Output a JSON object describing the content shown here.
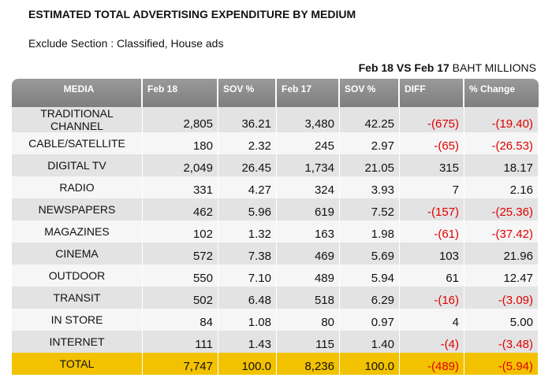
{
  "title": "ESTIMATED TOTAL ADVERTISING EXPENDITURE BY MEDIUM",
  "subtitle": "Exclude Section : Classified, House ads",
  "period": "Feb 18 VS Feb 17",
  "unit": "BAHT MILLIONS",
  "chart_data": {
    "type": "table",
    "columns": [
      "MEDIA",
      "Feb 18",
      "SOV %",
      "Feb 17",
      "SOV %",
      "DIFF",
      "% Change"
    ],
    "rows": [
      {
        "media": "TRADITIONAL CHANNEL",
        "feb18": "2,805",
        "sov18": "36.21",
        "feb17": "3,480",
        "sov17": "42.25",
        "diff": "-(675)",
        "change": "-(19.40)"
      },
      {
        "media": "CABLE/SATELLITE",
        "feb18": "180",
        "sov18": "2.32",
        "feb17": "245",
        "sov17": "2.97",
        "diff": "-(65)",
        "change": "-(26.53)"
      },
      {
        "media": "DIGITAL TV",
        "feb18": "2,049",
        "sov18": "26.45",
        "feb17": "1,734",
        "sov17": "21.05",
        "diff": "315",
        "change": "18.17"
      },
      {
        "media": "RADIO",
        "feb18": "331",
        "sov18": "4.27",
        "feb17": "324",
        "sov17": "3.93",
        "diff": "7",
        "change": "2.16"
      },
      {
        "media": "NEWSPAPERS",
        "feb18": "462",
        "sov18": "5.96",
        "feb17": "619",
        "sov17": "7.52",
        "diff": "-(157)",
        "change": "-(25.36)"
      },
      {
        "media": "MAGAZINES",
        "feb18": "102",
        "sov18": "1.32",
        "feb17": "163",
        "sov17": "1.98",
        "diff": "-(61)",
        "change": "-(37.42)"
      },
      {
        "media": "CINEMA",
        "feb18": "572",
        "sov18": "7.38",
        "feb17": "469",
        "sov17": "5.69",
        "diff": "103",
        "change": "21.96"
      },
      {
        "media": "OUTDOOR",
        "feb18": "550",
        "sov18": "7.10",
        "feb17": "489",
        "sov17": "5.94",
        "diff": "61",
        "change": "12.47"
      },
      {
        "media": "TRANSIT",
        "feb18": "502",
        "sov18": "6.48",
        "feb17": "518",
        "sov17": "6.29",
        "diff": "-(16)",
        "change": "-(3.09)"
      },
      {
        "media": "IN STORE",
        "feb18": "84",
        "sov18": "1.08",
        "feb17": "80",
        "sov17": "0.97",
        "diff": "4",
        "change": "5.00"
      },
      {
        "media": "INTERNET",
        "feb18": "111",
        "sov18": "1.43",
        "feb17": "115",
        "sov17": "1.40",
        "diff": "-(4)",
        "change": "-(3.48)"
      }
    ],
    "total": {
      "media": "TOTAL",
      "feb18": "7,747",
      "sov18": "100.0",
      "feb17": "8,236",
      "sov17": "100.0",
      "diff": "-(489)",
      "change": "-(5.94)"
    },
    "colors": {
      "header": "#8c8c8c",
      "row_odd": "#e3e3e3",
      "row_even": "#f6f6f6",
      "total": "#f2c200",
      "negative": "#e00000"
    }
  }
}
